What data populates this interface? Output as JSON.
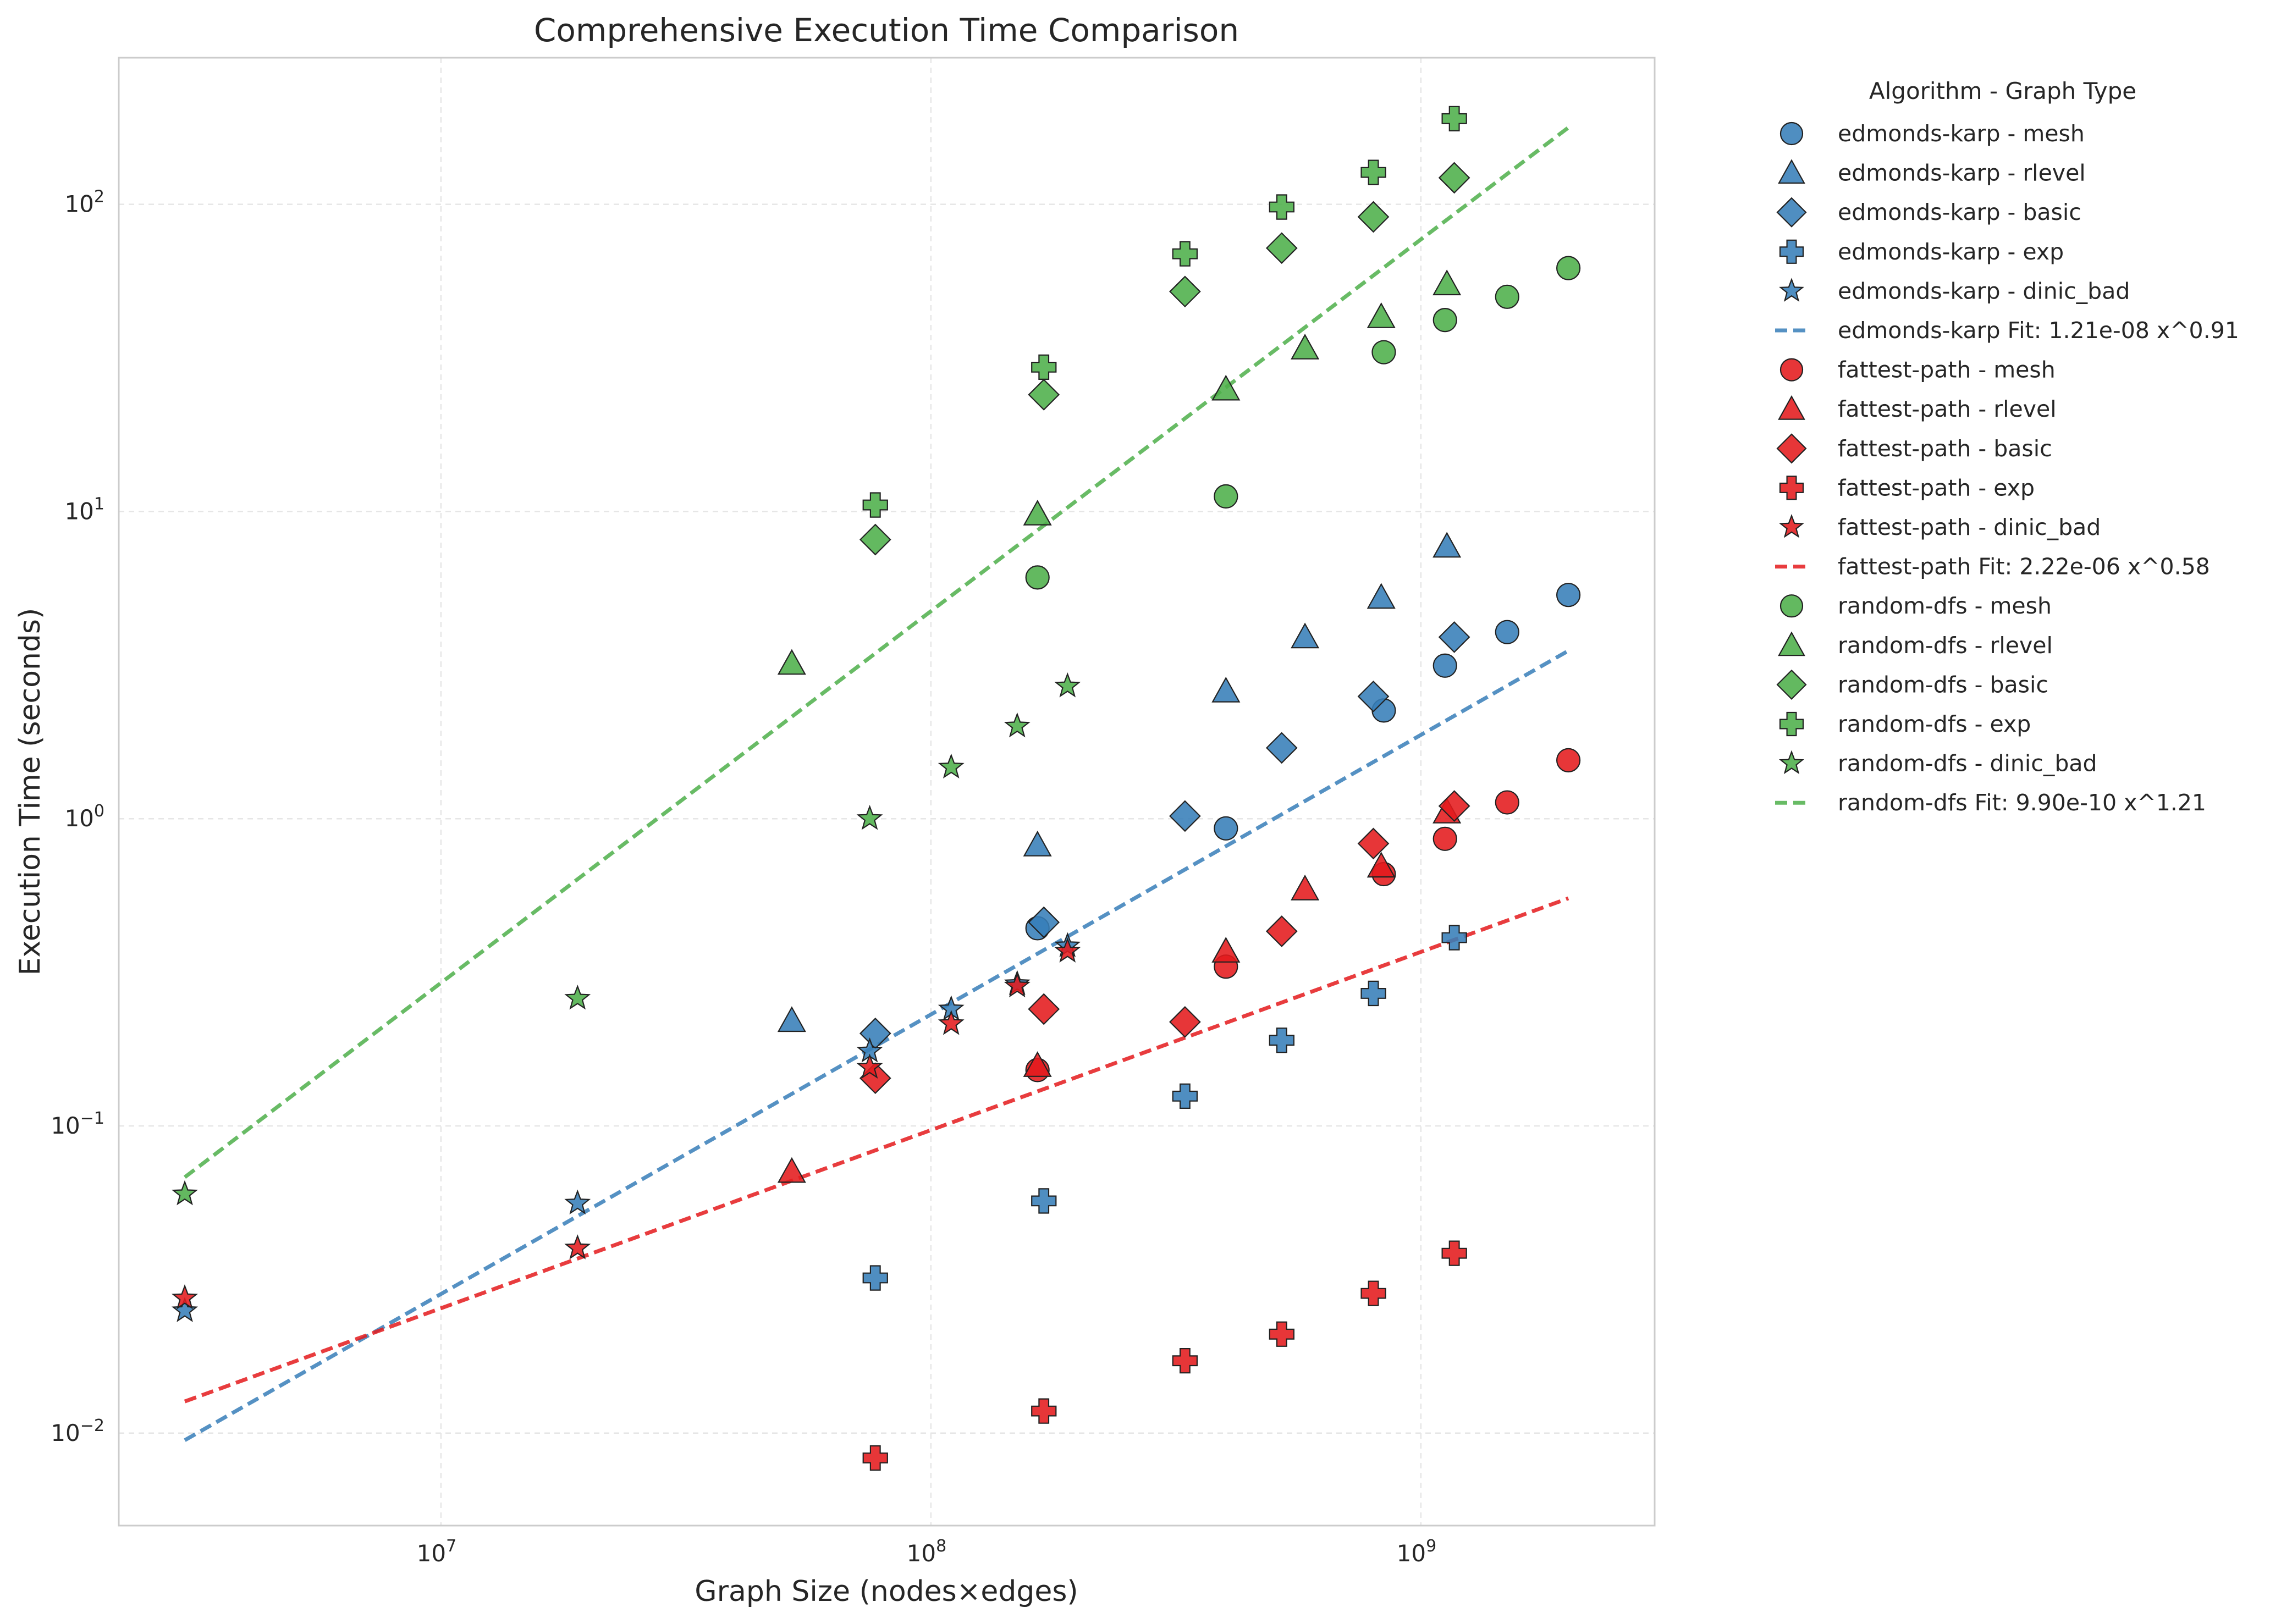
{
  "chart_data": {
    "type": "scatter",
    "title": "Comprehensive Execution Time Comparison",
    "xlabel": "Graph Size (nodes×edges)",
    "ylabel": "Execution Time (seconds)",
    "xscale": "log",
    "yscale": "log",
    "xlim": [
      2200000,
      3000000000
    ],
    "ylim": [
      0.005,
      300
    ],
    "grid": true,
    "legend_title": "Algorithm - Graph Type",
    "legend_placement": "outside-right",
    "x_ticks": [
      {
        "value": 10000000,
        "base": "10",
        "exp": "7"
      },
      {
        "value": 100000000,
        "base": "10",
        "exp": "8"
      },
      {
        "value": 1000000000,
        "base": "10",
        "exp": "9"
      }
    ],
    "y_ticks": [
      {
        "value": 0.01,
        "base": "10",
        "exp": "−2"
      },
      {
        "value": 0.1,
        "base": "10",
        "exp": "−1"
      },
      {
        "value": 1,
        "base": "10",
        "exp": "0"
      },
      {
        "value": 10,
        "base": "10",
        "exp": "1"
      },
      {
        "value": 100,
        "base": "10",
        "exp": "2"
      }
    ],
    "colors": {
      "edmonds-karp": "#377eb8",
      "fattest-path": "#e41a1c",
      "random-dfs": "#4daf4a"
    },
    "series": [
      {
        "name": "edmonds-karp - mesh",
        "algorithm": "edmonds-karp",
        "marker": "circle",
        "points": [
          [
            165000000,
            0.44
          ],
          [
            400000000,
            0.93
          ],
          [
            840000000,
            2.25
          ],
          [
            1120000000,
            3.15
          ],
          [
            1500000000,
            4.05
          ],
          [
            2000000000,
            5.35
          ]
        ]
      },
      {
        "name": "edmonds-karp - rlevel",
        "algorithm": "edmonds-karp",
        "marker": "triangle",
        "points": [
          [
            52000000,
            0.22
          ],
          [
            165000000,
            0.82
          ],
          [
            400000000,
            2.6
          ],
          [
            580000000,
            3.9
          ],
          [
            830000000,
            5.25
          ],
          [
            1130000000,
            7.7
          ]
        ]
      },
      {
        "name": "edmonds-karp - basic",
        "algorithm": "edmonds-karp",
        "marker": "diamond",
        "points": [
          [
            77000000,
            0.2
          ],
          [
            170000000,
            0.46
          ],
          [
            330000000,
            1.02
          ],
          [
            520000000,
            1.7
          ],
          [
            800000000,
            2.5
          ],
          [
            1170000000,
            3.9
          ]
        ]
      },
      {
        "name": "edmonds-karp - exp",
        "algorithm": "edmonds-karp",
        "marker": "plus",
        "points": [
          [
            77000000,
            0.032
          ],
          [
            170000000,
            0.057
          ],
          [
            330000000,
            0.125
          ],
          [
            520000000,
            0.19
          ],
          [
            800000000,
            0.27
          ],
          [
            1170000000,
            0.41
          ]
        ]
      },
      {
        "name": "edmonds-karp - dinic_bad",
        "algorithm": "edmonds-karp",
        "marker": "star",
        "points": [
          [
            3000000,
            0.025
          ],
          [
            19000000,
            0.056
          ],
          [
            75000000,
            0.175
          ],
          [
            110000000,
            0.24
          ],
          [
            150000000,
            0.29
          ],
          [
            190000000,
            0.385
          ]
        ]
      },
      {
        "name": "edmonds-karp Fit: 1.21e-08 x^0.91",
        "algorithm": "edmonds-karp",
        "marker": "line",
        "fit": {
          "a": 1.21e-08,
          "b": 0.91,
          "xmin": 3000000,
          "xmax": 2000000000
        }
      },
      {
        "name": "fattest-path - mesh",
        "algorithm": "fattest-path",
        "marker": "circle",
        "points": [
          [
            165000000,
            0.152
          ],
          [
            400000000,
            0.33
          ],
          [
            840000000,
            0.66
          ],
          [
            1120000000,
            0.86
          ],
          [
            1500000000,
            1.13
          ],
          [
            2000000000,
            1.55
          ]
        ]
      },
      {
        "name": "fattest-path - rlevel",
        "algorithm": "fattest-path",
        "marker": "triangle",
        "points": [
          [
            52000000,
            0.071
          ],
          [
            165000000,
            0.157
          ],
          [
            400000000,
            0.37
          ],
          [
            580000000,
            0.59
          ],
          [
            830000000,
            0.7
          ],
          [
            1130000000,
            1.05
          ]
        ]
      },
      {
        "name": "fattest-path - basic",
        "algorithm": "fattest-path",
        "marker": "diamond",
        "points": [
          [
            77000000,
            0.143
          ],
          [
            170000000,
            0.24
          ],
          [
            330000000,
            0.218
          ],
          [
            520000000,
            0.43
          ],
          [
            800000000,
            0.83
          ],
          [
            1170000000,
            1.1
          ]
        ]
      },
      {
        "name": "fattest-path - exp",
        "algorithm": "fattest-path",
        "marker": "plus",
        "points": [
          [
            77000000,
            0.0083
          ],
          [
            170000000,
            0.0118
          ],
          [
            330000000,
            0.0172
          ],
          [
            520000000,
            0.021
          ],
          [
            800000000,
            0.0285
          ],
          [
            1170000000,
            0.0385
          ]
        ]
      },
      {
        "name": "fattest-path - dinic_bad",
        "algorithm": "fattest-path",
        "marker": "star",
        "points": [
          [
            3000000,
            0.0275
          ],
          [
            19000000,
            0.04
          ],
          [
            75000000,
            0.155
          ],
          [
            110000000,
            0.215
          ],
          [
            150000000,
            0.285
          ],
          [
            190000000,
            0.37
          ]
        ]
      },
      {
        "name": "fattest-path Fit: 2.22e-06 x^0.58",
        "algorithm": "fattest-path",
        "marker": "line",
        "fit": {
          "a": 2.22e-06,
          "b": 0.58,
          "xmin": 3000000,
          "xmax": 2000000000
        }
      },
      {
        "name": "random-dfs - mesh",
        "algorithm": "random-dfs",
        "marker": "circle",
        "points": [
          [
            165000000,
            6.1
          ],
          [
            400000000,
            11.2
          ],
          [
            840000000,
            33
          ],
          [
            1120000000,
            42
          ],
          [
            1500000000,
            50
          ],
          [
            2000000000,
            62
          ]
        ]
      },
      {
        "name": "random-dfs - rlevel",
        "algorithm": "random-dfs",
        "marker": "triangle",
        "points": [
          [
            52000000,
            3.2
          ],
          [
            165000000,
            9.8
          ],
          [
            400000000,
            25
          ],
          [
            580000000,
            34
          ],
          [
            830000000,
            43
          ],
          [
            1130000000,
            55
          ]
        ]
      },
      {
        "name": "random-dfs - basic",
        "algorithm": "random-dfs",
        "marker": "diamond",
        "points": [
          [
            77000000,
            8.1
          ],
          [
            170000000,
            24
          ],
          [
            330000000,
            52
          ],
          [
            520000000,
            72
          ],
          [
            800000000,
            91
          ],
          [
            1170000000,
            122
          ]
        ]
      },
      {
        "name": "random-dfs - exp",
        "algorithm": "random-dfs",
        "marker": "plus",
        "points": [
          [
            77000000,
            10.5
          ],
          [
            170000000,
            29.5
          ],
          [
            330000000,
            69
          ],
          [
            520000000,
            98
          ],
          [
            800000000,
            127
          ],
          [
            1170000000,
            190
          ]
        ]
      },
      {
        "name": "random-dfs - dinic_bad",
        "algorithm": "random-dfs",
        "marker": "star",
        "points": [
          [
            3000000,
            0.06
          ],
          [
            19000000,
            0.26
          ],
          [
            75000000,
            1.0
          ],
          [
            110000000,
            1.47
          ],
          [
            150000000,
            2.0
          ],
          [
            190000000,
            2.7
          ]
        ]
      },
      {
        "name": "random-dfs Fit: 9.90e-10 x^1.21",
        "algorithm": "random-dfs",
        "marker": "line",
        "fit": {
          "a": 9.9e-10,
          "b": 1.21,
          "xmin": 3000000,
          "xmax": 2000000000
        }
      }
    ]
  }
}
